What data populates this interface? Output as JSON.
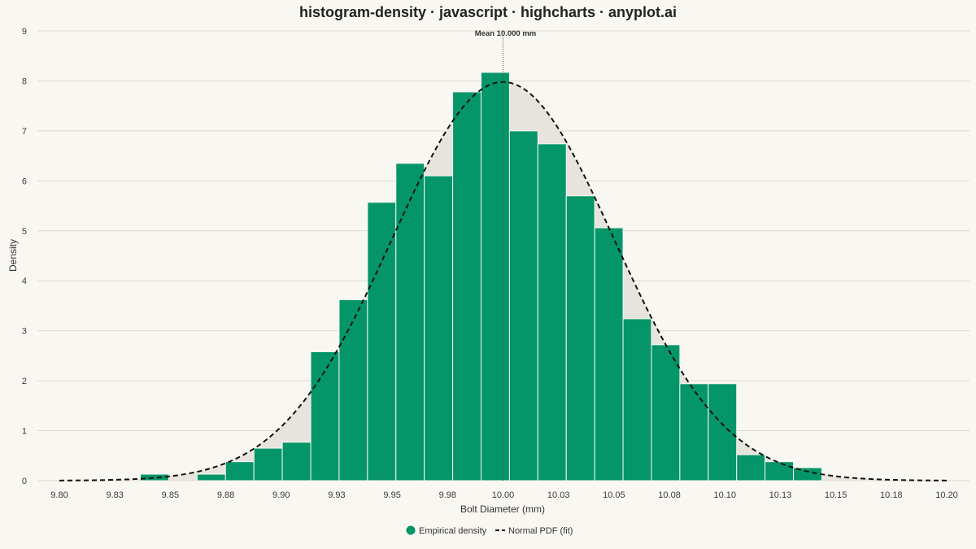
{
  "chart_data": {
    "type": "bar",
    "title": "histogram-density · javascript · highcharts · anyplot.ai",
    "xlabel": "Bolt Diameter (mm)",
    "ylabel": "Density",
    "xlim": [
      9.8,
      10.2
    ],
    "ylim": [
      0,
      9
    ],
    "grid": true,
    "legend_position": "bottom-center",
    "x_tick_values": [
      9.8,
      9.825,
      9.85,
      9.875,
      9.9,
      9.925,
      9.95,
      9.975,
      10.0,
      10.025,
      10.05,
      10.075,
      10.1,
      10.125,
      10.15,
      10.175,
      10.2
    ],
    "x_tick_labels": [
      "9.80",
      "9.83",
      "9.85",
      "9.88",
      "9.90",
      "9.93",
      "9.95",
      "9.98",
      "10.00",
      "10.03",
      "10.05",
      "10.08",
      "10.10",
      "10.13",
      "10.15",
      "10.18",
      "10.20"
    ],
    "y_ticks": [
      0,
      1,
      2,
      3,
      4,
      5,
      6,
      7,
      8,
      9
    ],
    "bin_width": 0.0128,
    "series": [
      {
        "name": "Empirical density",
        "type": "histogram",
        "color": "#049668",
        "bins": [
          {
            "start": 9.8365,
            "end": 9.8493,
            "density": 0.13
          },
          {
            "start": 9.8493,
            "end": 9.8621,
            "density": 0.0
          },
          {
            "start": 9.8621,
            "end": 9.8749,
            "density": 0.13
          },
          {
            "start": 9.8749,
            "end": 9.8877,
            "density": 0.38
          },
          {
            "start": 9.8877,
            "end": 9.9005,
            "density": 0.65
          },
          {
            "start": 9.9005,
            "end": 9.9133,
            "density": 0.77
          },
          {
            "start": 9.9133,
            "end": 9.9261,
            "density": 2.58
          },
          {
            "start": 9.9261,
            "end": 9.9389,
            "density": 3.62
          },
          {
            "start": 9.9389,
            "end": 9.9517,
            "density": 5.57
          },
          {
            "start": 9.9517,
            "end": 9.9645,
            "density": 6.35
          },
          {
            "start": 9.9645,
            "end": 9.9773,
            "density": 6.1
          },
          {
            "start": 9.9773,
            "end": 9.9901,
            "density": 7.78
          },
          {
            "start": 9.9901,
            "end": 10.0029,
            "density": 8.17
          },
          {
            "start": 10.0029,
            "end": 10.0157,
            "density": 7.0
          },
          {
            "start": 10.0157,
            "end": 10.0285,
            "density": 6.74
          },
          {
            "start": 10.0285,
            "end": 10.0413,
            "density": 5.7
          },
          {
            "start": 10.0413,
            "end": 10.0541,
            "density": 5.06
          },
          {
            "start": 10.0541,
            "end": 10.0669,
            "density": 3.24
          },
          {
            "start": 10.0669,
            "end": 10.0797,
            "density": 2.72
          },
          {
            "start": 10.0797,
            "end": 10.0925,
            "density": 1.94
          },
          {
            "start": 10.0925,
            "end": 10.1053,
            "density": 1.94
          },
          {
            "start": 10.1053,
            "end": 10.1181,
            "density": 0.52
          },
          {
            "start": 10.1181,
            "end": 10.1309,
            "density": 0.38
          },
          {
            "start": 10.1309,
            "end": 10.1437,
            "density": 0.26
          }
        ]
      },
      {
        "name": "Normal PDF (fit)",
        "type": "line",
        "style": "dashed",
        "color": "#111111",
        "fill_color": "#e6e4dd",
        "distribution": {
          "mean": 10.0,
          "std": 0.05
        },
        "x_range": [
          9.8,
          10.2
        ]
      }
    ],
    "annotations": [
      {
        "text": "Mean 10.000 mm",
        "x": 10.0
      }
    ]
  }
}
